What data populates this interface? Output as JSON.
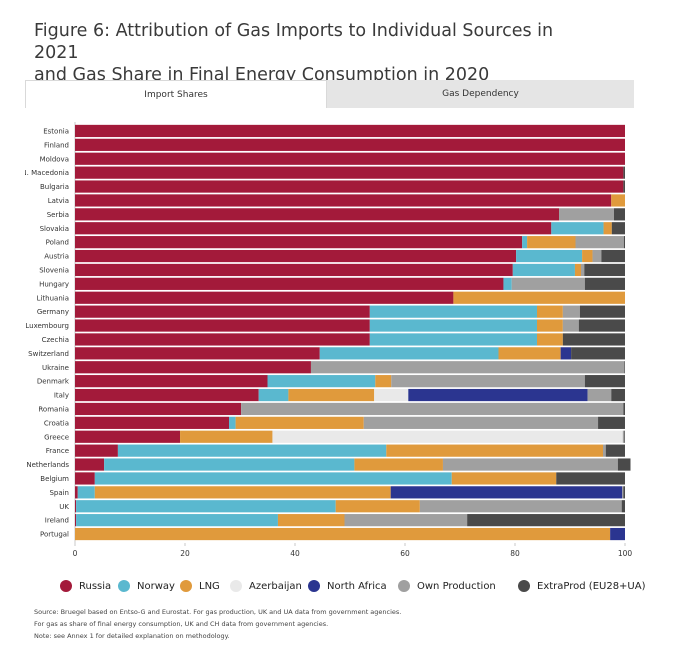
{
  "title_line1": "Figure 6: Attribution of Gas Imports to Individual Sources in 2021",
  "title_line2": "and Gas Share in Final Energy Consumption in 2020",
  "tabs": [
    {
      "label": "Import Shares",
      "active": true
    },
    {
      "label": "Gas Dependency",
      "active": false
    }
  ],
  "notes": {
    "source": "Source: Bruegel based on Entso-G and Eurostat. For gas production, UK and UA data from government agencies.",
    "line2": "For gas as share of final energy consumption, UK and CH data from government agencies.",
    "line3": "Note: see Annex 1 for detailed explanation on methodology."
  },
  "chart_data": {
    "type": "bar",
    "orientation": "horizontal",
    "stacked": true,
    "xlim": [
      0,
      100
    ],
    "xticks": [
      0,
      20,
      40,
      60,
      80,
      100
    ],
    "categories": [
      "Estonia",
      "Finland",
      "Moldova",
      "N. Macedonia",
      "Bulgaria",
      "Latvia",
      "Serbia",
      "Slovakia",
      "Poland",
      "Austria",
      "Slovenia",
      "Hungary",
      "Lithuania",
      "Germany",
      "Luxembourg",
      "Czechia",
      "Switzerland",
      "Ukraine",
      "Denmark",
      "Italy",
      "Romania",
      "Croatia",
      "Greece",
      "France",
      "Netherlands",
      "Belgium",
      "Spain",
      "UK",
      "Ireland",
      "Portugal"
    ],
    "series": [
      {
        "name": "Russia",
        "color": "#a31a3a",
        "values": [
          100,
          100,
          100,
          99.7,
          99.7,
          97.5,
          88,
          86.6,
          81.3,
          80.2,
          79.6,
          77.9,
          68.8,
          53.6,
          53.6,
          53.6,
          44.5,
          42.9,
          35,
          33.4,
          30.2,
          28,
          19.1,
          7.8,
          5.3,
          3.6,
          0.5,
          0.2,
          0.2,
          0
        ]
      },
      {
        "name": "Norway",
        "color": "#5ab8cf",
        "values": [
          0,
          0,
          0,
          0,
          0,
          0,
          0,
          9.5,
          0.9,
          12,
          11.3,
          1.5,
          0,
          30.4,
          30.4,
          30.4,
          32.5,
          0,
          19.6,
          5.4,
          0,
          1.2,
          0,
          48.8,
          45.5,
          64.9,
          3.1,
          47.2,
          36.7,
          0
        ]
      },
      {
        "name": "LNG",
        "color": "#e09a3c",
        "values": [
          0,
          0,
          0,
          0,
          0,
          2.5,
          0,
          1.5,
          8.8,
          1.9,
          1.1,
          0,
          31.2,
          4.7,
          4.7,
          4.7,
          11.3,
          0,
          2.9,
          15.6,
          0,
          23.3,
          16.8,
          39.4,
          16.1,
          19,
          53.8,
          15.3,
          12.1,
          97.3
        ]
      },
      {
        "name": "Azerbaijan",
        "color": "#e9e9e9",
        "values": [
          0,
          0,
          0,
          0,
          0,
          0,
          0,
          0,
          0,
          0,
          0,
          0,
          0,
          0,
          0,
          0,
          0,
          0,
          0,
          6.2,
          0,
          0,
          63.7,
          0,
          0,
          0,
          0,
          0,
          0,
          0
        ]
      },
      {
        "name": "North Africa",
        "color": "#2b3590",
        "values": [
          0,
          0,
          0,
          0,
          0,
          0,
          0,
          0,
          0,
          0,
          0,
          0,
          0,
          0,
          0,
          0,
          1.9,
          0,
          0,
          32.6,
          0,
          0,
          0,
          0,
          0,
          0,
          42.1,
          0,
          0,
          2.7
        ]
      },
      {
        "name": "Own Production",
        "color": "#a0a0a0",
        "values": [
          0,
          0,
          0,
          0,
          0,
          0,
          10,
          0,
          8.8,
          1.6,
          0.6,
          13.3,
          0,
          3.1,
          2.9,
          0,
          0,
          57,
          35.2,
          4.3,
          69.5,
          42.6,
          0.3,
          0.5,
          31.8,
          0,
          0.2,
          36.7,
          22.3,
          0
        ]
      },
      {
        "name": "ExtraProd (EU28+UA)",
        "color": "#4a4a4a",
        "values": [
          0,
          0,
          0,
          0.3,
          0.3,
          0,
          2,
          2.4,
          0.2,
          4.3,
          7.4,
          7.3,
          0,
          8.2,
          8.4,
          11.3,
          9.8,
          0.1,
          7.3,
          2.5,
          0.3,
          4.9,
          0.1,
          3.5,
          2.3,
          12.5,
          0.3,
          0.6,
          28.7,
          0
        ]
      }
    ]
  }
}
